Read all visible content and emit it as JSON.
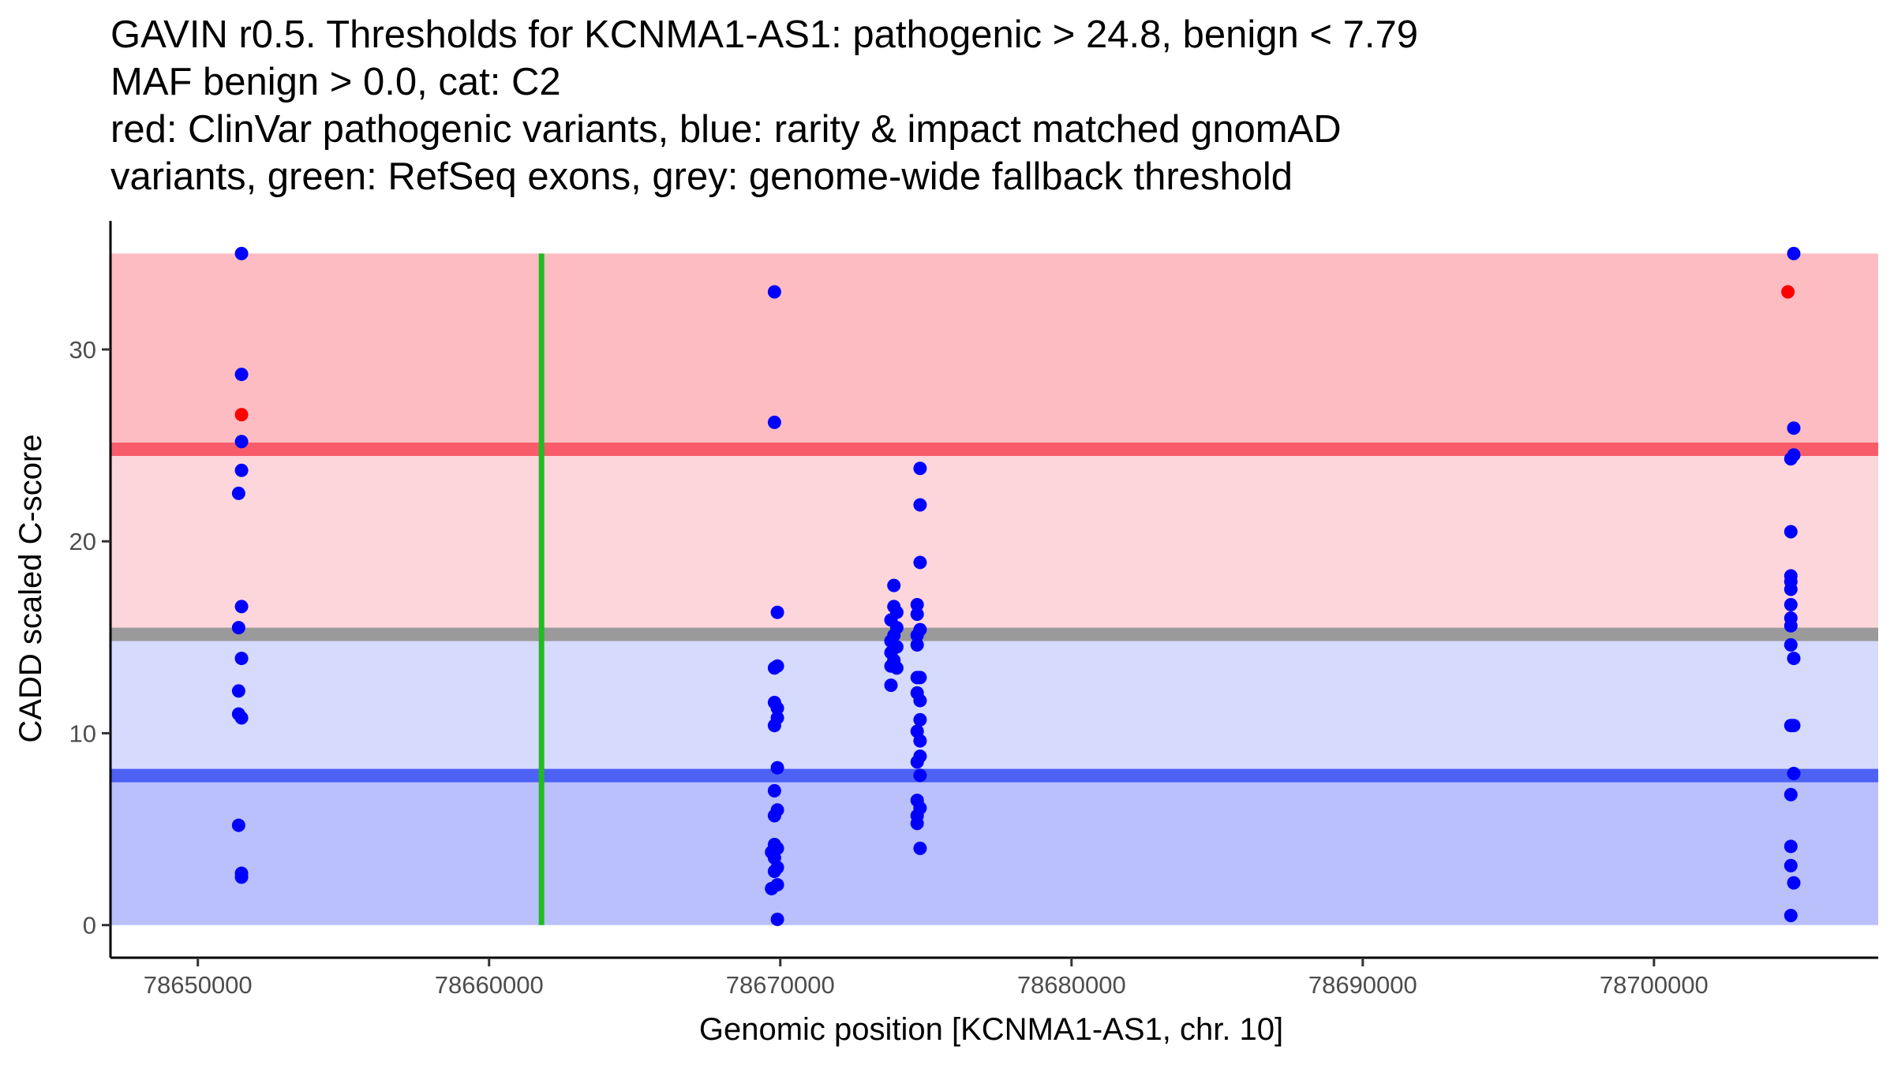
{
  "title_lines": [
    "GAVIN r0.5. Thresholds for KCNMA1-AS1: pathogenic > 24.8, benign < 7.79",
    "MAF benign > 0.0, cat: C2",
    "red: ClinVar pathogenic variants, blue: rarity & impact matched gnomAD",
    "variants, green: RefSeq exons, grey: genome-wide fallback threshold"
  ],
  "colors": {
    "pathogenic_band": "#fdbcc1",
    "middle_band_upper": "#fdd6dc",
    "middle_band_lower": "#d6dafd",
    "benign_band": "#b9c0fb",
    "pathogenic_line": "#f85c6b",
    "fallback_line": "#9a9a9a",
    "benign_line": "#4d61f5",
    "exon": "#22bb22",
    "gnomad_point": "#0000ff",
    "clinvar_point": "#ff0000"
  },
  "chart_data": {
    "type": "scatter",
    "title": "GAVIN r0.5. Thresholds for KCNMA1-AS1: pathogenic > 24.8, benign < 7.79",
    "xlabel": "Genomic position [KCNMA1-AS1, chr. 10]",
    "ylabel": "CADD scaled C-score",
    "xlim": [
      78647000,
      78707700
    ],
    "ylim": [
      -1.7,
      36.7
    ],
    "x_ticks": [
      78650000,
      78660000,
      78670000,
      78680000,
      78690000,
      78700000
    ],
    "x_tick_labels": [
      "78650000",
      "78660000",
      "78670000",
      "78680000",
      "78690000",
      "78700000"
    ],
    "y_ticks": [
      0,
      10,
      20,
      30
    ],
    "y_tick_labels": [
      "0",
      "10",
      "20",
      "30"
    ],
    "bands": {
      "pathogenic": [
        24.8,
        35
      ],
      "middle": [
        7.79,
        24.8
      ],
      "fallback_split": 15.15,
      "benign": [
        0,
        7.79
      ],
      "x_range": [
        78647000,
        78707700
      ]
    },
    "thresholds": {
      "pathogenic": 24.8,
      "fallback": 15.15,
      "benign": 7.79
    },
    "exons": [
      78661800
    ],
    "series": [
      {
        "name": "gnomAD",
        "points": [
          [
            78651500,
            35.0
          ],
          [
            78651500,
            28.7
          ],
          [
            78651500,
            25.2
          ],
          [
            78651500,
            23.7
          ],
          [
            78651400,
            22.5
          ],
          [
            78651500,
            16.6
          ],
          [
            78651400,
            15.5
          ],
          [
            78651500,
            13.9
          ],
          [
            78651400,
            12.2
          ],
          [
            78651400,
            11.0
          ],
          [
            78651500,
            10.8
          ],
          [
            78651400,
            5.2
          ],
          [
            78651500,
            2.7
          ],
          [
            78651500,
            2.5
          ],
          [
            78669800,
            33.0
          ],
          [
            78669800,
            26.2
          ],
          [
            78669900,
            16.3
          ],
          [
            78669900,
            13.5
          ],
          [
            78669800,
            13.4
          ],
          [
            78669800,
            11.6
          ],
          [
            78669900,
            11.3
          ],
          [
            78669900,
            10.8
          ],
          [
            78669800,
            10.4
          ],
          [
            78669900,
            8.2
          ],
          [
            78669800,
            7.0
          ],
          [
            78669900,
            6.0
          ],
          [
            78669800,
            5.7
          ],
          [
            78669800,
            4.2
          ],
          [
            78669900,
            4.0
          ],
          [
            78669700,
            3.8
          ],
          [
            78669800,
            3.5
          ],
          [
            78669900,
            3.0
          ],
          [
            78669800,
            2.8
          ],
          [
            78669900,
            2.1
          ],
          [
            78669700,
            1.9
          ],
          [
            78669900,
            0.3
          ],
          [
            78673900,
            17.7
          ],
          [
            78673900,
            16.6
          ],
          [
            78674000,
            16.3
          ],
          [
            78673800,
            15.9
          ],
          [
            78674000,
            15.5
          ],
          [
            78673900,
            15.1
          ],
          [
            78673800,
            14.8
          ],
          [
            78674000,
            14.5
          ],
          [
            78673800,
            14.2
          ],
          [
            78673900,
            13.8
          ],
          [
            78674000,
            13.4
          ],
          [
            78673800,
            13.5
          ],
          [
            78673800,
            12.5
          ],
          [
            78674800,
            23.8
          ],
          [
            78674800,
            21.9
          ],
          [
            78674800,
            18.9
          ],
          [
            78674700,
            16.7
          ],
          [
            78674700,
            16.2
          ],
          [
            78674800,
            15.4
          ],
          [
            78674700,
            15.1
          ],
          [
            78674700,
            14.6
          ],
          [
            78674800,
            12.9
          ],
          [
            78674700,
            12.9
          ],
          [
            78674700,
            12.1
          ],
          [
            78674800,
            11.7
          ],
          [
            78674800,
            10.7
          ],
          [
            78674700,
            10.1
          ],
          [
            78674800,
            9.6
          ],
          [
            78674800,
            8.8
          ],
          [
            78674700,
            8.5
          ],
          [
            78674800,
            7.8
          ],
          [
            78674700,
            6.5
          ],
          [
            78674800,
            6.1
          ],
          [
            78674700,
            5.7
          ],
          [
            78674700,
            5.3
          ],
          [
            78674800,
            4.0
          ],
          [
            78704800,
            35.0
          ],
          [
            78704800,
            25.9
          ],
          [
            78704800,
            24.5
          ],
          [
            78704700,
            24.3
          ],
          [
            78704700,
            20.5
          ],
          [
            78704700,
            18.2
          ],
          [
            78704700,
            17.9
          ],
          [
            78704700,
            17.5
          ],
          [
            78704700,
            16.7
          ],
          [
            78704700,
            16.0
          ],
          [
            78704700,
            15.6
          ],
          [
            78704700,
            14.6
          ],
          [
            78704800,
            13.9
          ],
          [
            78704700,
            10.4
          ],
          [
            78704800,
            10.4
          ],
          [
            78704800,
            7.9
          ],
          [
            78704700,
            6.8
          ],
          [
            78704700,
            4.1
          ],
          [
            78704700,
            3.1
          ],
          [
            78704800,
            2.2
          ],
          [
            78704700,
            0.5
          ]
        ]
      },
      {
        "name": "ClinVar",
        "points": [
          [
            78651500,
            26.6
          ],
          [
            78704600,
            33.0
          ]
        ]
      }
    ]
  }
}
